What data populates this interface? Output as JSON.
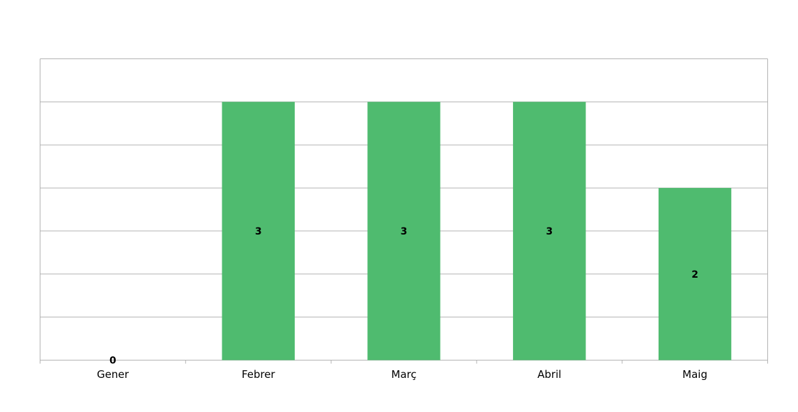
{
  "chart_data": {
    "type": "bar",
    "categories": [
      "Gener",
      "Febrer",
      "Març",
      "Abril",
      "Maig"
    ],
    "values": [
      0,
      3,
      3,
      3,
      2
    ],
    "title": "",
    "xlabel": "",
    "ylabel": "",
    "ylim": [
      0,
      3.5
    ],
    "grid_step": 0.5,
    "grid": true,
    "y_tick_labels_shown": false,
    "data_labels": true,
    "bar_color": "#4fbb6f",
    "grid_color": "#b3b3b3"
  }
}
